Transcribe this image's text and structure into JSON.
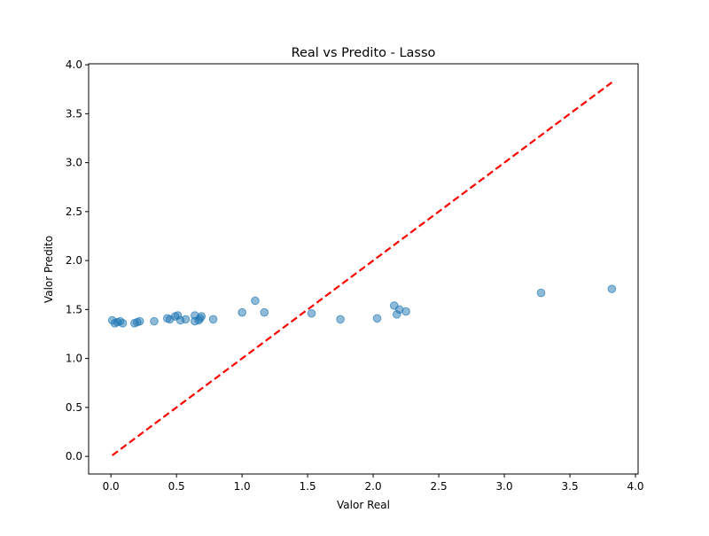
{
  "chart_data": {
    "type": "scatter",
    "title": "Real vs Predito - Lasso",
    "xlabel": "Valor Real",
    "ylabel": "Valor Predito",
    "xlim": [
      -0.17,
      4.02
    ],
    "ylim": [
      -0.18,
      4.01
    ],
    "xticks": [
      0.0,
      0.5,
      1.0,
      1.5,
      2.0,
      2.5,
      3.0,
      3.5,
      4.0
    ],
    "xtick_labels": [
      "0.0",
      "0.5",
      "1.0",
      "1.5",
      "2.0",
      "2.5",
      "3.0",
      "3.5",
      "4.0"
    ],
    "yticks": [
      0.0,
      0.5,
      1.0,
      1.5,
      2.0,
      2.5,
      3.0,
      3.5,
      4.0
    ],
    "ytick_labels": [
      "0.0",
      "0.5",
      "1.0",
      "1.5",
      "2.0",
      "2.5",
      "3.0",
      "3.5",
      "4.0"
    ],
    "grid": false,
    "legend": "none",
    "series": [
      {
        "kind": "scatter",
        "color": "#1f77b4",
        "alpha": 0.5,
        "x": [
          0.01,
          0.03,
          0.05,
          0.07,
          0.09,
          0.18,
          0.2,
          0.22,
          0.33,
          0.43,
          0.45,
          0.49,
          0.51,
          0.53,
          0.57,
          0.64,
          0.64,
          0.67,
          0.68,
          0.69,
          0.78,
          1.0,
          1.1,
          1.17,
          1.53,
          1.75,
          2.03,
          2.16,
          2.18,
          2.2,
          2.25,
          3.28,
          3.82
        ],
        "y": [
          1.39,
          1.36,
          1.37,
          1.38,
          1.36,
          1.36,
          1.37,
          1.38,
          1.38,
          1.41,
          1.4,
          1.43,
          1.44,
          1.39,
          1.4,
          1.38,
          1.44,
          1.39,
          1.41,
          1.43,
          1.4,
          1.47,
          1.59,
          1.47,
          1.46,
          1.4,
          1.41,
          1.54,
          1.45,
          1.5,
          1.48,
          1.67,
          1.71
        ]
      },
      {
        "kind": "line",
        "color": "#ff0000",
        "style": "dashed",
        "x": [
          0.01,
          3.82
        ],
        "y": [
          0.01,
          3.82
        ]
      }
    ]
  }
}
